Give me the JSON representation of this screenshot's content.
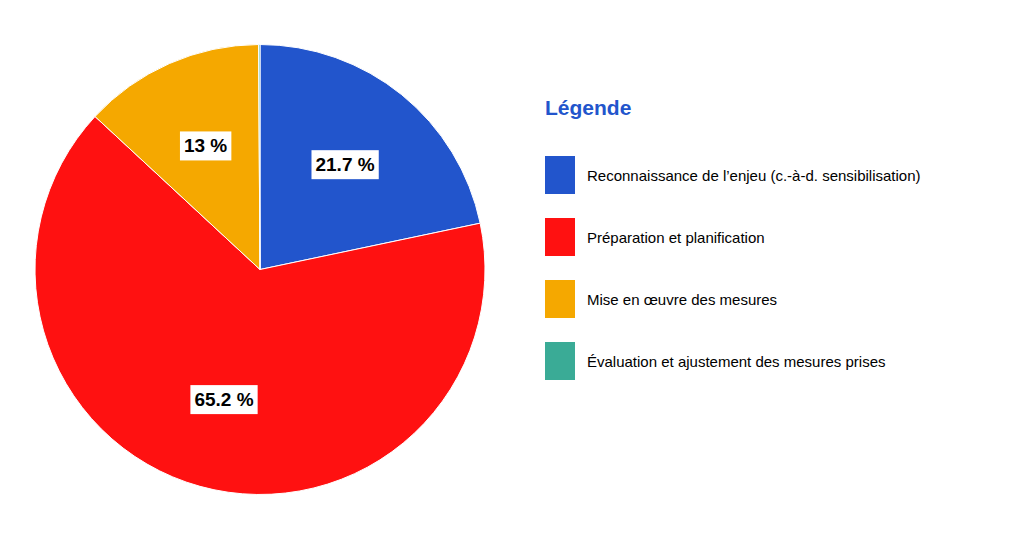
{
  "chart_data": {
    "type": "pie",
    "title": "Légende",
    "categories": [
      "Reconnaissance de l’enjeu (c.-à-d. sensibilisation)",
      "Préparation et planification",
      "Mise en œuvre des mesures",
      "Évaluation et ajustement des mesures prises"
    ],
    "values": [
      21.7,
      65.2,
      13.0,
      0.1
    ],
    "value_labels": [
      "21.7 %",
      "65.2 %",
      "13 %",
      null
    ],
    "colors": [
      "#2255cc",
      "#ff1111",
      "#f5a800",
      "#3aab96"
    ],
    "data_labels": true
  }
}
